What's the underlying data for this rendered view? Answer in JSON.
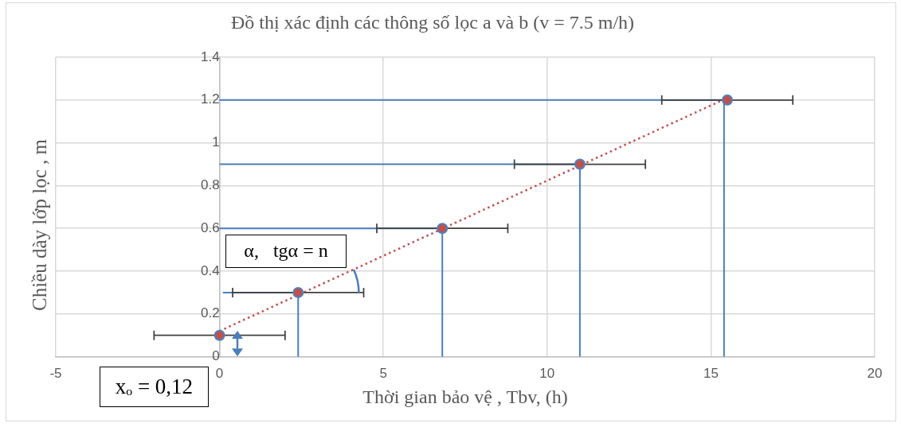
{
  "chart_data": {
    "type": "scatter",
    "title": "Đồ thị xác định các thông số lọc a và b (v = 7.5 m/h)",
    "xlabel": "Thời gian bảo vệ , Tbv, (h)",
    "ylabel": "Chiều dày lớp lọc , m",
    "annotations": [
      "α,   tgα = n",
      "xₒ = 0,12"
    ],
    "xlim": [
      -5,
      20
    ],
    "xticks": [
      -5,
      0,
      5,
      10,
      15,
      20
    ],
    "ylim": [
      0,
      1.4
    ],
    "yticks": [
      0,
      0.2,
      0.4,
      0.6,
      0.8,
      1,
      1.2,
      1.4
    ],
    "grid": true,
    "legend": false,
    "marker": "circle",
    "series": [
      {
        "type": "line",
        "color": "#c0504d",
        "line_style": "dotted",
        "marker": "none",
        "x": [
          0,
          15.5
        ],
        "values": [
          0.12,
          1.21
        ]
      },
      {
        "type": "line",
        "color": "#4a7ebb",
        "marker": "none",
        "x": [
          0.1,
          2.4,
          2.4
        ],
        "values": [
          0.3,
          0.3,
          0
        ]
      },
      {
        "type": "line",
        "color": "#4a7ebb",
        "marker": "none",
        "x": [
          0,
          6.8,
          6.8
        ],
        "values": [
          0.6,
          0.6,
          0
        ]
      },
      {
        "type": "line",
        "color": "#4a7ebb",
        "marker": "none",
        "x": [
          0,
          11,
          11
        ],
        "values": [
          0.9,
          0.9,
          0
        ]
      },
      {
        "type": "line",
        "color": "#4a7ebb",
        "marker": "none",
        "x": [
          0,
          15.4,
          15.4
        ],
        "values": [
          1.2,
          1.2,
          0
        ]
      },
      {
        "type": "scatter",
        "color": "#c0504d",
        "x": [
          0,
          2.4,
          6.8,
          11,
          15.5
        ],
        "values": [
          0.1,
          0.3,
          0.6,
          0.9,
          1.2
        ],
        "xerrors": [
          2,
          2,
          2,
          2,
          2
        ]
      }
    ]
  }
}
